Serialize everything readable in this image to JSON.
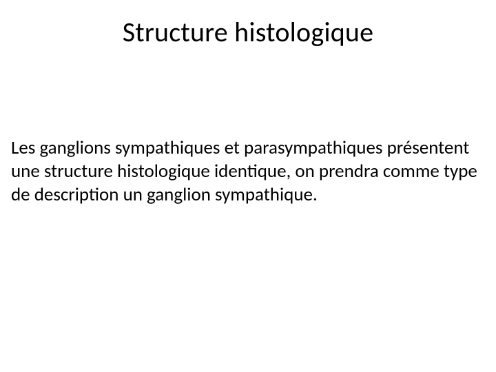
{
  "slide": {
    "title": "Structure histologique",
    "body": "Les ganglions sympathiques et parasympathiques présentent une structure histologique identique, on prendra comme type de description un ganglion sympathique.",
    "title_fontsize": 40,
    "body_fontsize": 27,
    "text_color": "#000000",
    "background_color": "#ffffff",
    "font_family": "Calibri"
  }
}
